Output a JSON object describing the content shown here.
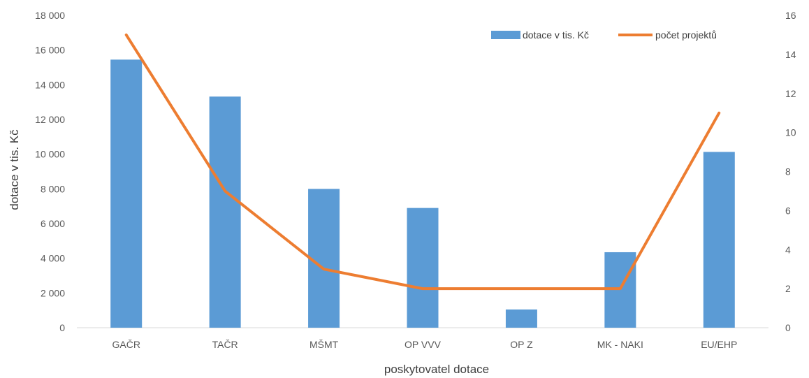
{
  "chart_data": {
    "type": "bar",
    "categories": [
      "GAČR",
      "TAČR",
      "MŠMT",
      "OP VVV",
      "OP Z",
      "MK - NAKI",
      "EU/EHP"
    ],
    "series": [
      {
        "name": "dotace v tis. Kč",
        "kind": "bar",
        "axis": "left",
        "values": [
          15450,
          13320,
          8000,
          6900,
          1050,
          4350,
          10130
        ],
        "color": "#5B9BD5"
      },
      {
        "name": "počet projektů",
        "kind": "line",
        "axis": "right",
        "values": [
          15,
          7,
          3,
          2,
          2,
          2,
          11
        ],
        "color": "#ED7D31"
      }
    ],
    "xlabel": "poskytovatel dotace",
    "ylabel": "dotace v tis. Kč",
    "ylim": [
      0,
      18000
    ],
    "yticks": [
      "0",
      "2 000",
      "4 000",
      "6 000",
      "8 000",
      "10 000",
      "12 000",
      "14 000",
      "16 000",
      "18 000"
    ],
    "y2lim": [
      0,
      16
    ],
    "y2ticks": [
      "0",
      "2",
      "4",
      "6",
      "8",
      "10",
      "12",
      "14",
      "16"
    ],
    "legend_position": "top-right",
    "grid": false
  }
}
